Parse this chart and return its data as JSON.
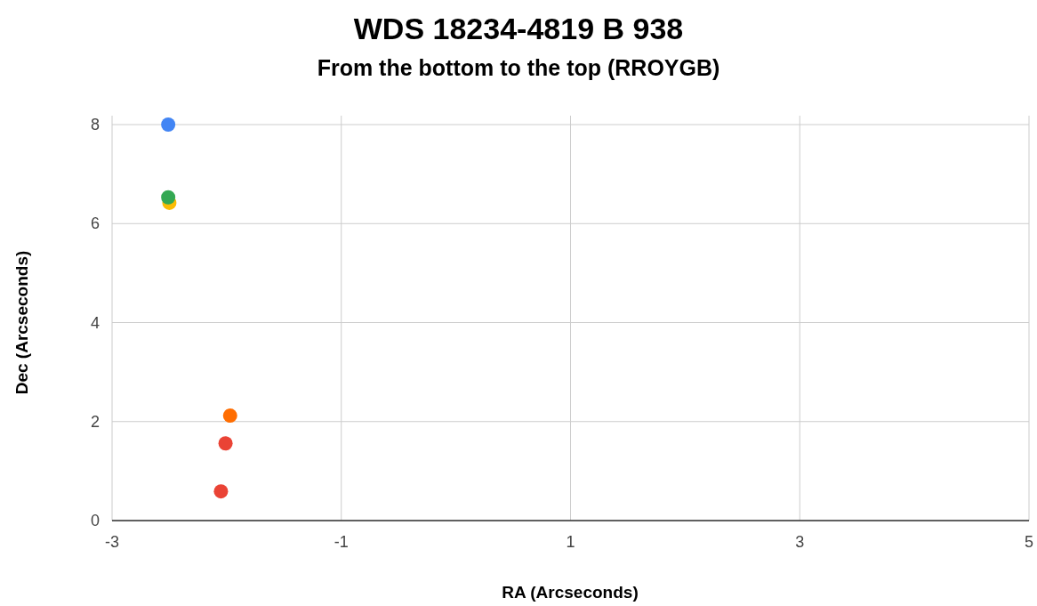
{
  "chart_data": {
    "type": "scatter",
    "title": "WDS 18234-4819 B 938",
    "subtitle": "From the bottom to the top (RROYGB)",
    "xlabel": "RA (Arcseconds)",
    "ylabel": "Dec (Arcseconds)",
    "x": [
      -2.05,
      -2.01,
      -1.97,
      -2.5,
      -2.51,
      -2.51
    ],
    "values": [
      0.59,
      1.56,
      2.12,
      6.42,
      6.53,
      8.0
    ],
    "colors": [
      "#ea4335",
      "#ea4335",
      "#ff6d01",
      "#fbbc04",
      "#34a853",
      "#4285f4"
    ],
    "xlim": [
      -3,
      5
    ],
    "xticks": [
      -3,
      -1,
      1,
      3,
      5
    ],
    "ylim": [
      0,
      8
    ],
    "yticks": [
      0,
      2,
      4,
      6,
      8
    ],
    "grid": true,
    "marker": "circle"
  }
}
